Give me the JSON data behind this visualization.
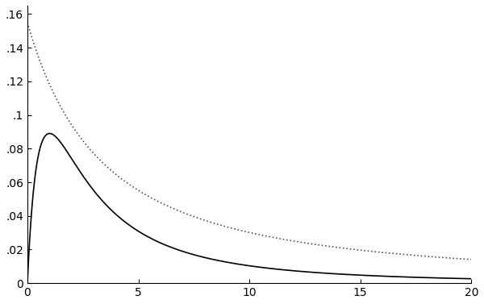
{
  "xlim": [
    0,
    20
  ],
  "ylim": [
    0,
    0.165
  ],
  "xticks": [
    0,
    5,
    10,
    15,
    20
  ],
  "yticks": [
    0,
    0.02,
    0.04,
    0.06,
    0.08,
    0.1,
    0.12,
    0.14,
    0.16
  ],
  "ytick_labels": [
    "0",
    ".02",
    ".04",
    ".06",
    ".08",
    ".1",
    ".12",
    ".14",
    ".16"
  ],
  "solid_line_color": "#000000",
  "dotted_line_color": "#555555",
  "background_color": "#ffffff",
  "solid_shape": 2.5,
  "solid_rate": 2.5,
  "dotted_rate": 0.2,
  "figsize": [
    6.0,
    3.77
  ],
  "dpi": 100
}
